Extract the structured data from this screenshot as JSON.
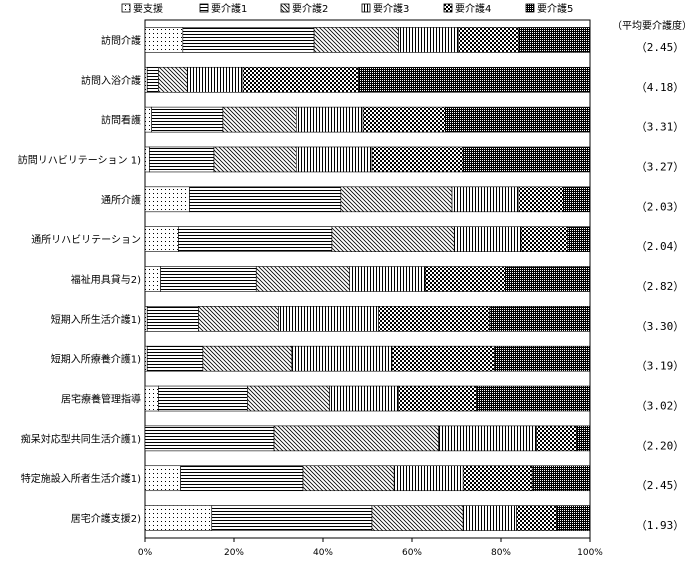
{
  "chart_data": {
    "type": "bar",
    "orientation": "horizontal",
    "stacked": true,
    "percent": true,
    "title": "",
    "xlabel": "",
    "ylabel": "",
    "xlim": [
      0,
      100
    ],
    "x_ticks": [
      "0%",
      "20%",
      "40%",
      "60%",
      "80%",
      "100%"
    ],
    "legend_position": "top",
    "avg_header": "（平均要介護度）",
    "categories": [
      "訪問介護",
      "訪問入浴介護",
      "訪問看護",
      "訪問リハビリテーション 1)",
      "通所介護",
      "通所リハビリテーション",
      "福祉用具貸与2)",
      "短期入所生活介護1)",
      "短期入所療養介護1)",
      "居宅療養管理指導",
      "痴呆対応型共同生活介護1)",
      "特定施設入所者生活介護1)",
      "居宅介護支援2)"
    ],
    "averages": [
      "（2.45）",
      "（4.18）",
      "（3.31）",
      "（3.27）",
      "（2.03）",
      "（2.04）",
      "（2.82）",
      "（3.30）",
      "（3.19）",
      "（3.02）",
      "（2.20）",
      "（2.45）",
      "（1.93）"
    ],
    "series": [
      {
        "name": "要支援",
        "pattern": "dots",
        "values": [
          8.5,
          0.5,
          1.5,
          1.0,
          10.0,
          7.5,
          3.5,
          0.5,
          0.5,
          3.0,
          0.0,
          8.0,
          15.0
        ]
      },
      {
        "name": "要介護1",
        "pattern": "hlines",
        "values": [
          29.5,
          2.5,
          16.0,
          14.5,
          34.0,
          34.5,
          21.5,
          11.5,
          12.5,
          20.0,
          29.0,
          27.5,
          36.0
        ]
      },
      {
        "name": "要介護2",
        "pattern": "diagonal",
        "values": [
          19.0,
          6.5,
          16.5,
          18.5,
          25.0,
          27.5,
          21.0,
          18.0,
          20.0,
          18.5,
          37.0,
          20.5,
          20.5
        ]
      },
      {
        "name": "要介護3",
        "pattern": "vlines",
        "values": [
          13.5,
          12.5,
          15.0,
          17.0,
          15.0,
          15.0,
          17.0,
          22.5,
          22.5,
          15.5,
          22.0,
          15.5,
          12.0
        ]
      },
      {
        "name": "要介護4",
        "pattern": "checker",
        "values": [
          13.5,
          26.0,
          18.5,
          20.5,
          10.0,
          10.5,
          18.0,
          25.0,
          23.0,
          17.5,
          9.0,
          15.5,
          9.0
        ]
      },
      {
        "name": "要介護5",
        "pattern": "dense",
        "values": [
          16.0,
          52.0,
          32.5,
          28.5,
          6.0,
          5.0,
          19.0,
          22.5,
          21.5,
          25.5,
          3.0,
          13.0,
          7.5
        ]
      }
    ]
  }
}
